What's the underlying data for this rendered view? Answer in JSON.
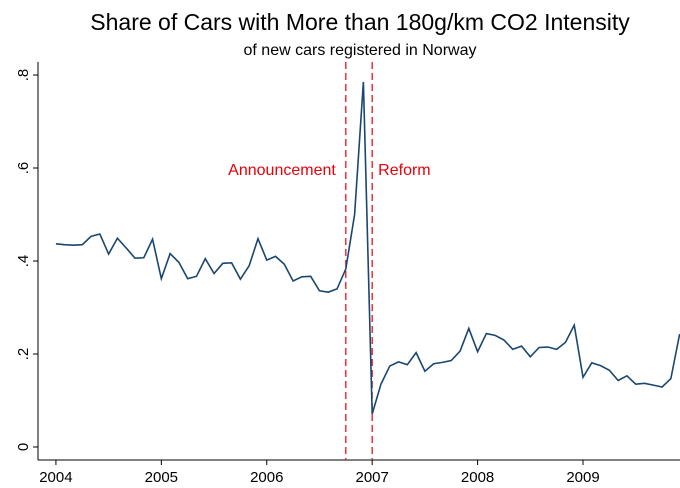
{
  "chart_data": {
    "type": "line",
    "title": "Share of Cars with More than 180g/km CO2 Intensity",
    "subtitle": "of new cars registered in Norway",
    "x": [
      2004,
      2004.0833,
      2004.1667,
      2004.25,
      2004.3333,
      2004.4167,
      2004.5,
      2004.5833,
      2004.6667,
      2004.75,
      2004.8333,
      2004.9167,
      2005,
      2005.0833,
      2005.1667,
      2005.25,
      2005.3333,
      2005.4167,
      2005.5,
      2005.5833,
      2005.6667,
      2005.75,
      2005.8333,
      2005.9167,
      2006,
      2006.0833,
      2006.1667,
      2006.25,
      2006.3333,
      2006.4167,
      2006.5,
      2006.5833,
      2006.6667,
      2006.75,
      2006.8333,
      2006.9167,
      2007,
      2007.0833,
      2007.1667,
      2007.25,
      2007.3333,
      2007.4167,
      2007.5,
      2007.5833,
      2007.6667,
      2007.75,
      2007.8333,
      2007.9167,
      2008,
      2008.0833,
      2008.1667,
      2008.25,
      2008.3333,
      2008.4167,
      2008.5,
      2008.5833,
      2008.6667,
      2008.75,
      2008.8333,
      2008.9167,
      2009,
      2009.0833,
      2009.1667,
      2009.25,
      2009.3333,
      2009.4167,
      2009.5,
      2009.5833,
      2009.6667,
      2009.75,
      2009.8333,
      2009.9167
    ],
    "values": [
      0.437,
      0.435,
      0.434,
      0.435,
      0.453,
      0.458,
      0.415,
      0.449,
      0.428,
      0.406,
      0.407,
      0.447,
      0.362,
      0.416,
      0.397,
      0.362,
      0.367,
      0.405,
      0.373,
      0.395,
      0.396,
      0.361,
      0.39,
      0.448,
      0.402,
      0.41,
      0.393,
      0.357,
      0.366,
      0.367,
      0.336,
      0.333,
      0.34,
      0.383,
      0.5,
      0.785,
      0.071,
      0.135,
      0.174,
      0.183,
      0.177,
      0.203,
      0.163,
      0.179,
      0.182,
      0.186,
      0.206,
      0.255,
      0.205,
      0.244,
      0.24,
      0.23,
      0.21,
      0.217,
      0.194,
      0.214,
      0.215,
      0.21,
      0.225,
      0.262,
      0.15,
      0.181,
      0.175,
      0.165,
      0.143,
      0.153,
      0.135,
      0.137,
      0.133,
      0.129,
      0.147,
      0.243
    ],
    "color": "#1a476f",
    "xlim": [
      2003.83,
      2009.92
    ],
    "xticks": [
      2004,
      2005,
      2006,
      2007,
      2008,
      2009
    ],
    "ylim": [
      -0.028,
      0.828
    ],
    "yticks": [
      {
        "value": 0,
        "label": "0"
      },
      {
        "value": 0.2,
        "label": ".2"
      },
      {
        "value": 0.4,
        "label": ".4"
      },
      {
        "value": 0.6,
        "label": ".6"
      },
      {
        "value": 0.8,
        "label": ".8"
      }
    ],
    "annotations": [
      {
        "x": 2006.75,
        "text": "Announcement",
        "side": "left"
      },
      {
        "x": 2007,
        "text": "Reform",
        "side": "right"
      }
    ],
    "annotation_color": "#e8000b"
  }
}
